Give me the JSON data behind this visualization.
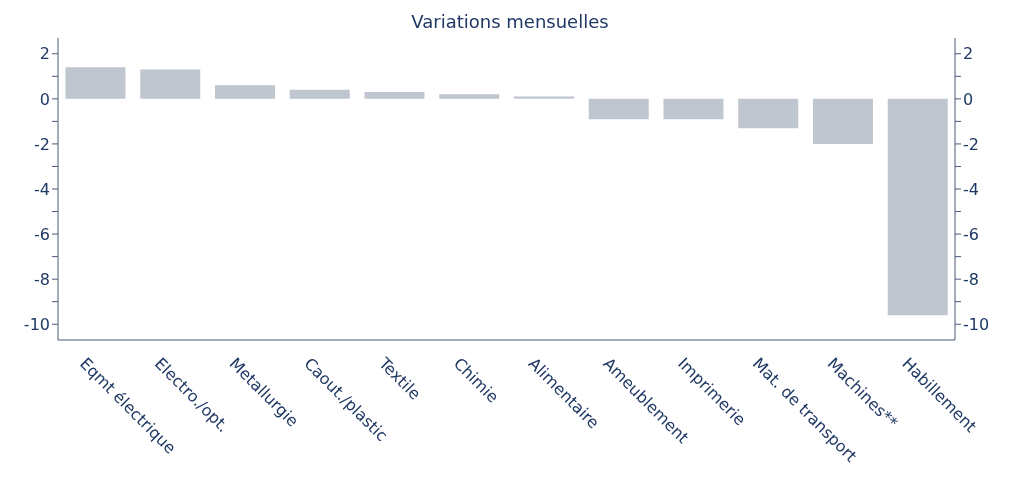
{
  "chart_data": {
    "type": "bar",
    "title": "Variations mensuelles",
    "categories": [
      "Eqmt électrique",
      "Electro./opt.",
      "Metallurgie",
      "Caout./plastic",
      "Textile",
      "Chimie",
      "Alimentaire",
      "Ameublement",
      "Imprimerie",
      "Mat. de transport",
      "Machines**",
      "Habillement"
    ],
    "values": [
      1.4,
      1.3,
      0.6,
      0.4,
      0.3,
      0.2,
      0.1,
      -0.9,
      -0.9,
      -1.3,
      -2.0,
      -9.6
    ],
    "color": "#bfc6d0",
    "ylim": [
      -10.7,
      2.7
    ],
    "yticks": [
      2,
      {
        "value": 1,
        "label": null
      },
      0,
      {
        "value": -1,
        "label": null
      },
      -2,
      {
        "value": -3,
        "label": null
      },
      -4,
      {
        "value": -5,
        "label": null
      },
      -6,
      {
        "value": -7,
        "label": null
      },
      -8,
      {
        "value": -9,
        "label": null
      },
      -10
    ],
    "y2lim": [
      -10.7,
      2.7
    ],
    "y2ticks": [
      2,
      {
        "value": 1,
        "label": null
      },
      0,
      {
        "value": -1,
        "label": null
      },
      -2,
      {
        "value": -3,
        "label": null
      },
      -4,
      {
        "value": -5,
        "label": null
      },
      -6,
      {
        "value": -7,
        "label": null
      },
      -8,
      {
        "value": -9,
        "label": null
      },
      -10
    ]
  }
}
